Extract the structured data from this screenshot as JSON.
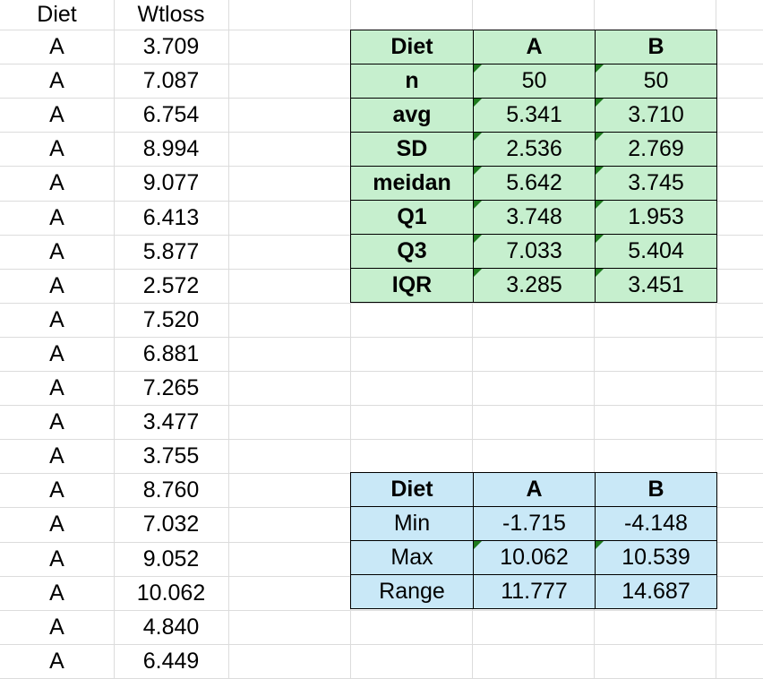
{
  "sheet": {
    "col_headers": [
      "Diet",
      "Wtloss"
    ],
    "rows": [
      {
        "diet": "A",
        "wtloss": "3.709"
      },
      {
        "diet": "A",
        "wtloss": "7.087"
      },
      {
        "diet": "A",
        "wtloss": "6.754"
      },
      {
        "diet": "A",
        "wtloss": "8.994"
      },
      {
        "diet": "A",
        "wtloss": "9.077"
      },
      {
        "diet": "A",
        "wtloss": "6.413"
      },
      {
        "diet": "A",
        "wtloss": "5.877"
      },
      {
        "diet": "A",
        "wtloss": "2.572"
      },
      {
        "diet": "A",
        "wtloss": "7.520"
      },
      {
        "diet": "A",
        "wtloss": "6.881"
      },
      {
        "diet": "A",
        "wtloss": "7.265"
      },
      {
        "diet": "A",
        "wtloss": "3.477"
      },
      {
        "diet": "A",
        "wtloss": "3.755"
      },
      {
        "diet": "A",
        "wtloss": "8.760"
      },
      {
        "diet": "A",
        "wtloss": "7.032"
      },
      {
        "diet": "A",
        "wtloss": "9.052"
      },
      {
        "diet": "A",
        "wtloss": "10.062"
      },
      {
        "diet": "A",
        "wtloss": "4.840"
      },
      {
        "diet": "A",
        "wtloss": "6.449"
      }
    ]
  },
  "summary_table": {
    "header": [
      "Diet",
      "A",
      "B"
    ],
    "rows": [
      {
        "label": "n",
        "a": "50",
        "b": "50"
      },
      {
        "label": "avg",
        "a": "5.341",
        "b": "3.710"
      },
      {
        "label": "SD",
        "a": "2.536",
        "b": "2.769"
      },
      {
        "label": "meidan",
        "a": "5.642",
        "b": "3.745"
      },
      {
        "label": "Q1",
        "a": "3.748",
        "b": "1.953"
      },
      {
        "label": "Q3",
        "a": "7.033",
        "b": "5.404"
      },
      {
        "label": "IQR",
        "a": "3.285",
        "b": "3.451"
      }
    ],
    "color": "#c6efce"
  },
  "range_table": {
    "header": [
      "Diet",
      "A",
      "B"
    ],
    "rows": [
      {
        "label": "Min",
        "a": "-1.715",
        "b": "-4.148"
      },
      {
        "label": "Max",
        "a": "10.062",
        "b": "10.539"
      },
      {
        "label": "Range",
        "a": "11.777",
        "b": "14.687"
      }
    ],
    "color": "#c9e8f7"
  }
}
